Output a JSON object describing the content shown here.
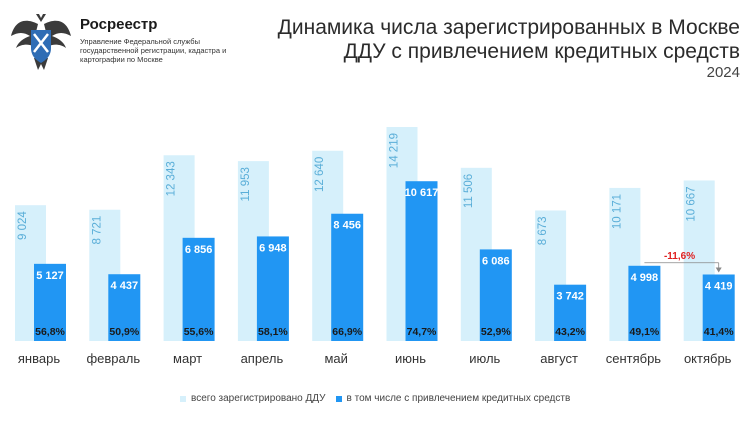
{
  "header": {
    "brand_name": "Росреестр",
    "brand_sub": "Управление Федеральной службы государственной регистрации, кадастра и картографии по Москве",
    "title_line1": "Динамика числа зарегистрированных в Москве",
    "title_line2": "ДДУ с привлечением кредитных средств",
    "year": "2024"
  },
  "colors": {
    "total": "#d6f0fb",
    "total_label": "#5aaed8",
    "credit": "#2196f3",
    "annotation": "#e02020"
  },
  "chart_data": {
    "type": "bar",
    "title": "Динамика числа зарегистрированных в Москве ДДУ с привлечением кредитных средств",
    "subtitle": "2024",
    "categories": [
      "январь",
      "февраль",
      "март",
      "апрель",
      "май",
      "июнь",
      "июль",
      "август",
      "сентябрь",
      "октябрь"
    ],
    "series": [
      {
        "name": "всего зарегистрировано ДДУ",
        "values": [
          9024,
          8721,
          12343,
          11953,
          12640,
          14219,
          11506,
          8673,
          10171,
          10667
        ],
        "labels": [
          "9 024",
          "8 721",
          "12 343",
          "11 953",
          "12 640",
          "14 219",
          "11 506",
          "8 673",
          "10 171",
          "10 667"
        ]
      },
      {
        "name": "в том числе с привлечением кредитных средств",
        "values": [
          5127,
          4437,
          6856,
          6948,
          8456,
          10617,
          6086,
          3742,
          4998,
          4419
        ],
        "labels": [
          "5 127",
          "4 437",
          "6 856",
          "6 948",
          "8 456",
          "10 617",
          "6 086",
          "3 742",
          "4 998",
          "4 419"
        ]
      }
    ],
    "shares": [
      "56,8%",
      "50,9%",
      "55,6%",
      "58,1%",
      "66,9%",
      "74,7%",
      "52,9%",
      "43,2%",
      "49,1%",
      "41,4%"
    ],
    "annotation": {
      "text": "-11,6%",
      "from": "сентябрь",
      "to": "октябрь"
    },
    "ylim": [
      0,
      14219
    ],
    "grid": false,
    "legend": "bottom-center"
  }
}
